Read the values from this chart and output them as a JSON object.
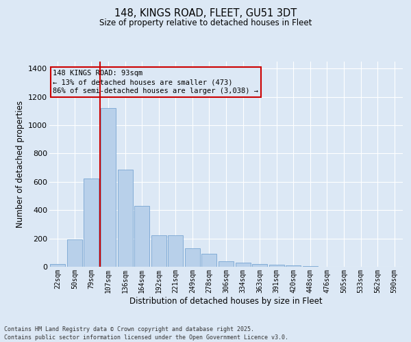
{
  "title_line1": "148, KINGS ROAD, FLEET, GU51 3DT",
  "title_line2": "Size of property relative to detached houses in Fleet",
  "xlabel": "Distribution of detached houses by size in Fleet",
  "ylabel": "Number of detached properties",
  "categories": [
    "22sqm",
    "50sqm",
    "79sqm",
    "107sqm",
    "136sqm",
    "164sqm",
    "192sqm",
    "221sqm",
    "249sqm",
    "278sqm",
    "306sqm",
    "334sqm",
    "363sqm",
    "391sqm",
    "420sqm",
    "448sqm",
    "476sqm",
    "505sqm",
    "533sqm",
    "562sqm",
    "590sqm"
  ],
  "values": [
    20,
    195,
    625,
    1120,
    685,
    430,
    220,
    220,
    130,
    90,
    37,
    30,
    18,
    13,
    8,
    3,
    2,
    1,
    0,
    0,
    0
  ],
  "bar_color": "#b8d0ea",
  "bar_edge_color": "#6699cc",
  "background_color": "#dce8f5",
  "grid_color": "#ffffff",
  "vline_color": "#cc0000",
  "vline_x_idx": 3,
  "annotation_title": "148 KINGS ROAD: 93sqm",
  "annotation_line2": "← 13% of detached houses are smaller (473)",
  "annotation_line3": "86% of semi-detached houses are larger (3,038) →",
  "annotation_box_edgecolor": "#cc0000",
  "ylim": [
    0,
    1450
  ],
  "yticks": [
    0,
    200,
    400,
    600,
    800,
    1000,
    1200,
    1400
  ],
  "footer_line1": "Contains HM Land Registry data © Crown copyright and database right 2025.",
  "footer_line2": "Contains public sector information licensed under the Open Government Licence v3.0."
}
